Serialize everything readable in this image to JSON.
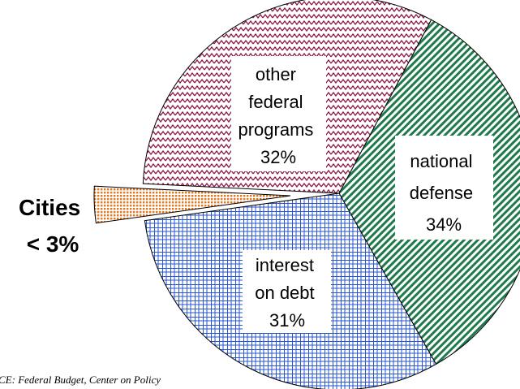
{
  "chart_data": {
    "type": "pie",
    "title": "",
    "slices": [
      {
        "name": "other federal programs",
        "label_lines": [
          "other",
          "federal",
          "programs",
          "32%"
        ],
        "value": 32,
        "pattern": "zigzag",
        "color": "#8B1A4A"
      },
      {
        "name": "national defense",
        "label_lines": [
          "national",
          "defense",
          "34%"
        ],
        "value": 34,
        "pattern": "diagonal-hatch",
        "color": "#1E7A4A"
      },
      {
        "name": "interest on debt",
        "label_lines": [
          "interest",
          "on debt",
          "31%"
        ],
        "value": 31,
        "pattern": "grid",
        "color": "#2A56C8"
      },
      {
        "name": "Cities",
        "label_lines": [
          "Cities",
          "< 3%"
        ],
        "value": 3,
        "pattern": "dots",
        "color": "#E07820",
        "exploded": true
      }
    ],
    "source_note": "CE: Federal Budget, Center on Policy"
  }
}
